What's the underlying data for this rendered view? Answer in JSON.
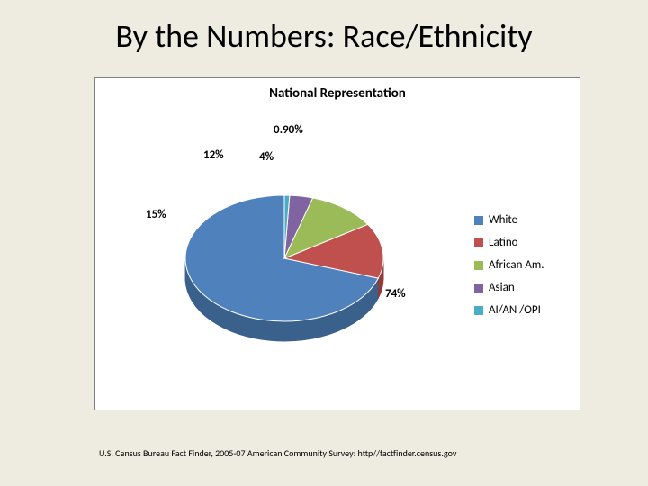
{
  "slide": {
    "title": "By the Numbers: Race/Ethnicity",
    "background_color": "#eeece1"
  },
  "chart": {
    "type": "pie",
    "title": "National Representation",
    "title_fontsize": 15,
    "background_color": "#ffffff",
    "border_color": "#808080",
    "series": [
      {
        "name": "White",
        "value": 74,
        "label": "74%",
        "color": "#4f81bd",
        "color_dark": "#3a608c"
      },
      {
        "name": "Latino",
        "value": 15,
        "label": "15%",
        "color": "#c0504d",
        "color_dark": "#8f3c3a"
      },
      {
        "name": "African Am.",
        "value": 12,
        "label": "12%",
        "color": "#9bbb59",
        "color_dark": "#748c42"
      },
      {
        "name": "Asian",
        "value": 4,
        "label": "4%",
        "color": "#8064a2",
        "color_dark": "#5f4b79"
      },
      {
        "name": "AI/AN /OPI",
        "value": 0.9,
        "label": "0.90%",
        "color": "#4bacc6",
        "color_dark": "#388094"
      }
    ],
    "label_fontsize": 13,
    "legend_fontsize": 13,
    "start_angle_deg": -90,
    "direction": "counterclockwise",
    "tilt_3d": true
  },
  "citation": "U.S. Census Bureau Fact Finder, 2005-07 American Community Survey: http//factfinder.census.gov"
}
